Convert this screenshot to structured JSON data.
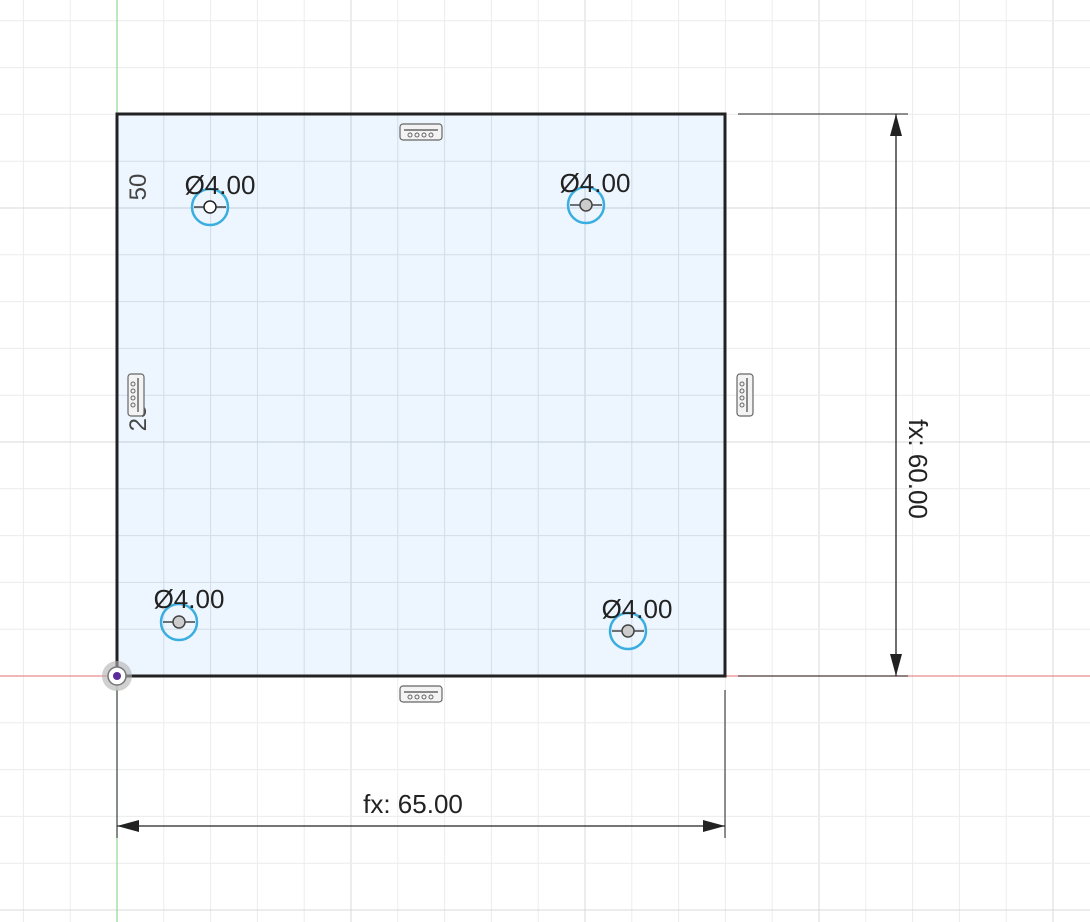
{
  "sketch": {
    "width_dimension": "fx: 65.00",
    "height_dimension": "fx: 60.00",
    "ruler_labels": [
      "50",
      "25"
    ],
    "holes": [
      {
        "name": "hole-top-left",
        "label": "Ø4.00"
      },
      {
        "name": "hole-top-right",
        "label": "Ø4.00"
      },
      {
        "name": "hole-bottom-left",
        "label": "Ø4.00"
      },
      {
        "name": "hole-bottom-right",
        "label": "Ø4.00"
      }
    ],
    "constraint_icons": [
      "horizontal-constraint-icon",
      "vertical-constraint-icon"
    ]
  },
  "colors": {
    "grid_minor": "#ececec",
    "grid_major": "#d8d8d8",
    "profile_fill": "#eaf4fe",
    "profile_stroke": "#222222",
    "x_axis": "#e88c8c",
    "y_axis": "#8fd98f",
    "hole_circle": "#3aaee0",
    "origin": "#5b2c9a"
  }
}
